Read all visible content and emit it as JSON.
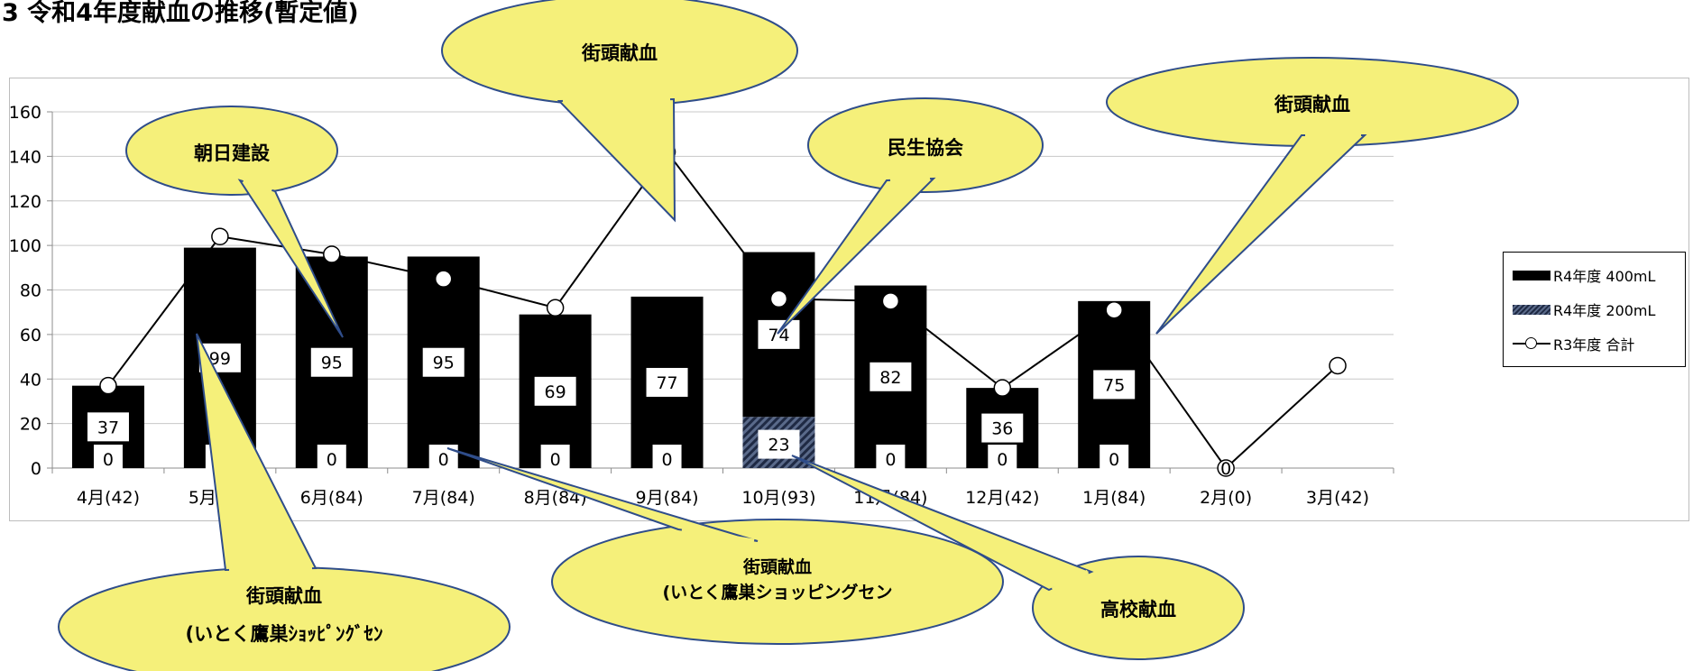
{
  "title": "3 令和4年度献血の推移(暫定値)",
  "chart_data": {
    "type": "bar",
    "categories": [
      "4月(42)",
      "5月(84)",
      "6月(84)",
      "7月(84)",
      "8月(84)",
      "9月(84)",
      "10月(93)",
      "11月(84)",
      "12月(42)",
      "1月(84)",
      "2月(0)",
      "3月(42)"
    ],
    "ylim": [
      0,
      160
    ],
    "yticks": [
      0,
      20,
      40,
      60,
      80,
      100,
      120,
      140,
      160
    ],
    "grid": true,
    "legend_position": "right",
    "series": [
      {
        "name": "R4年度 400mL",
        "type": "bar",
        "color": "#000000",
        "values": [
          37,
          99,
          95,
          95,
          69,
          77,
          74,
          82,
          36,
          75,
          null,
          null
        ],
        "labels": [
          "37",
          "99",
          "95",
          "95",
          "69",
          "77",
          "74",
          "82",
          "36",
          "75",
          "",
          ""
        ]
      },
      {
        "name": "R4年度 200mL",
        "type": "bar",
        "color": "#2a3550",
        "values": [
          0,
          0,
          0,
          0,
          0,
          0,
          23,
          0,
          0,
          0,
          0,
          null
        ],
        "labels": [
          "0",
          "0",
          "0",
          "0",
          "0",
          "0",
          "23",
          "0",
          "0",
          "0",
          "0",
          ""
        ]
      },
      {
        "name": "R3年度 合計",
        "type": "line",
        "color": "#000000",
        "values": [
          37,
          104,
          96,
          85,
          72,
          142,
          76,
          75,
          36,
          71,
          0,
          46
        ]
      }
    ],
    "annotations": [
      {
        "text": "街頭献血",
        "target": "9月(84)"
      },
      {
        "text": "朝日建設",
        "target": "6月(84)"
      },
      {
        "text": "民生協会",
        "target": "10月(93)"
      },
      {
        "text": "街頭献血",
        "target": "1月(84)"
      },
      {
        "text": "街頭献血",
        "text2": "(いとく鷹巣ｼｮｯﾋﾟﾝｸﾞｾﾝ",
        "target": "5月(84)"
      },
      {
        "text": "街頭献血",
        "text2": "(いとく鷹巣ショッピングセン",
        "target": "7月(84)"
      },
      {
        "text": "高校献血",
        "target": "10月(93)"
      }
    ]
  }
}
